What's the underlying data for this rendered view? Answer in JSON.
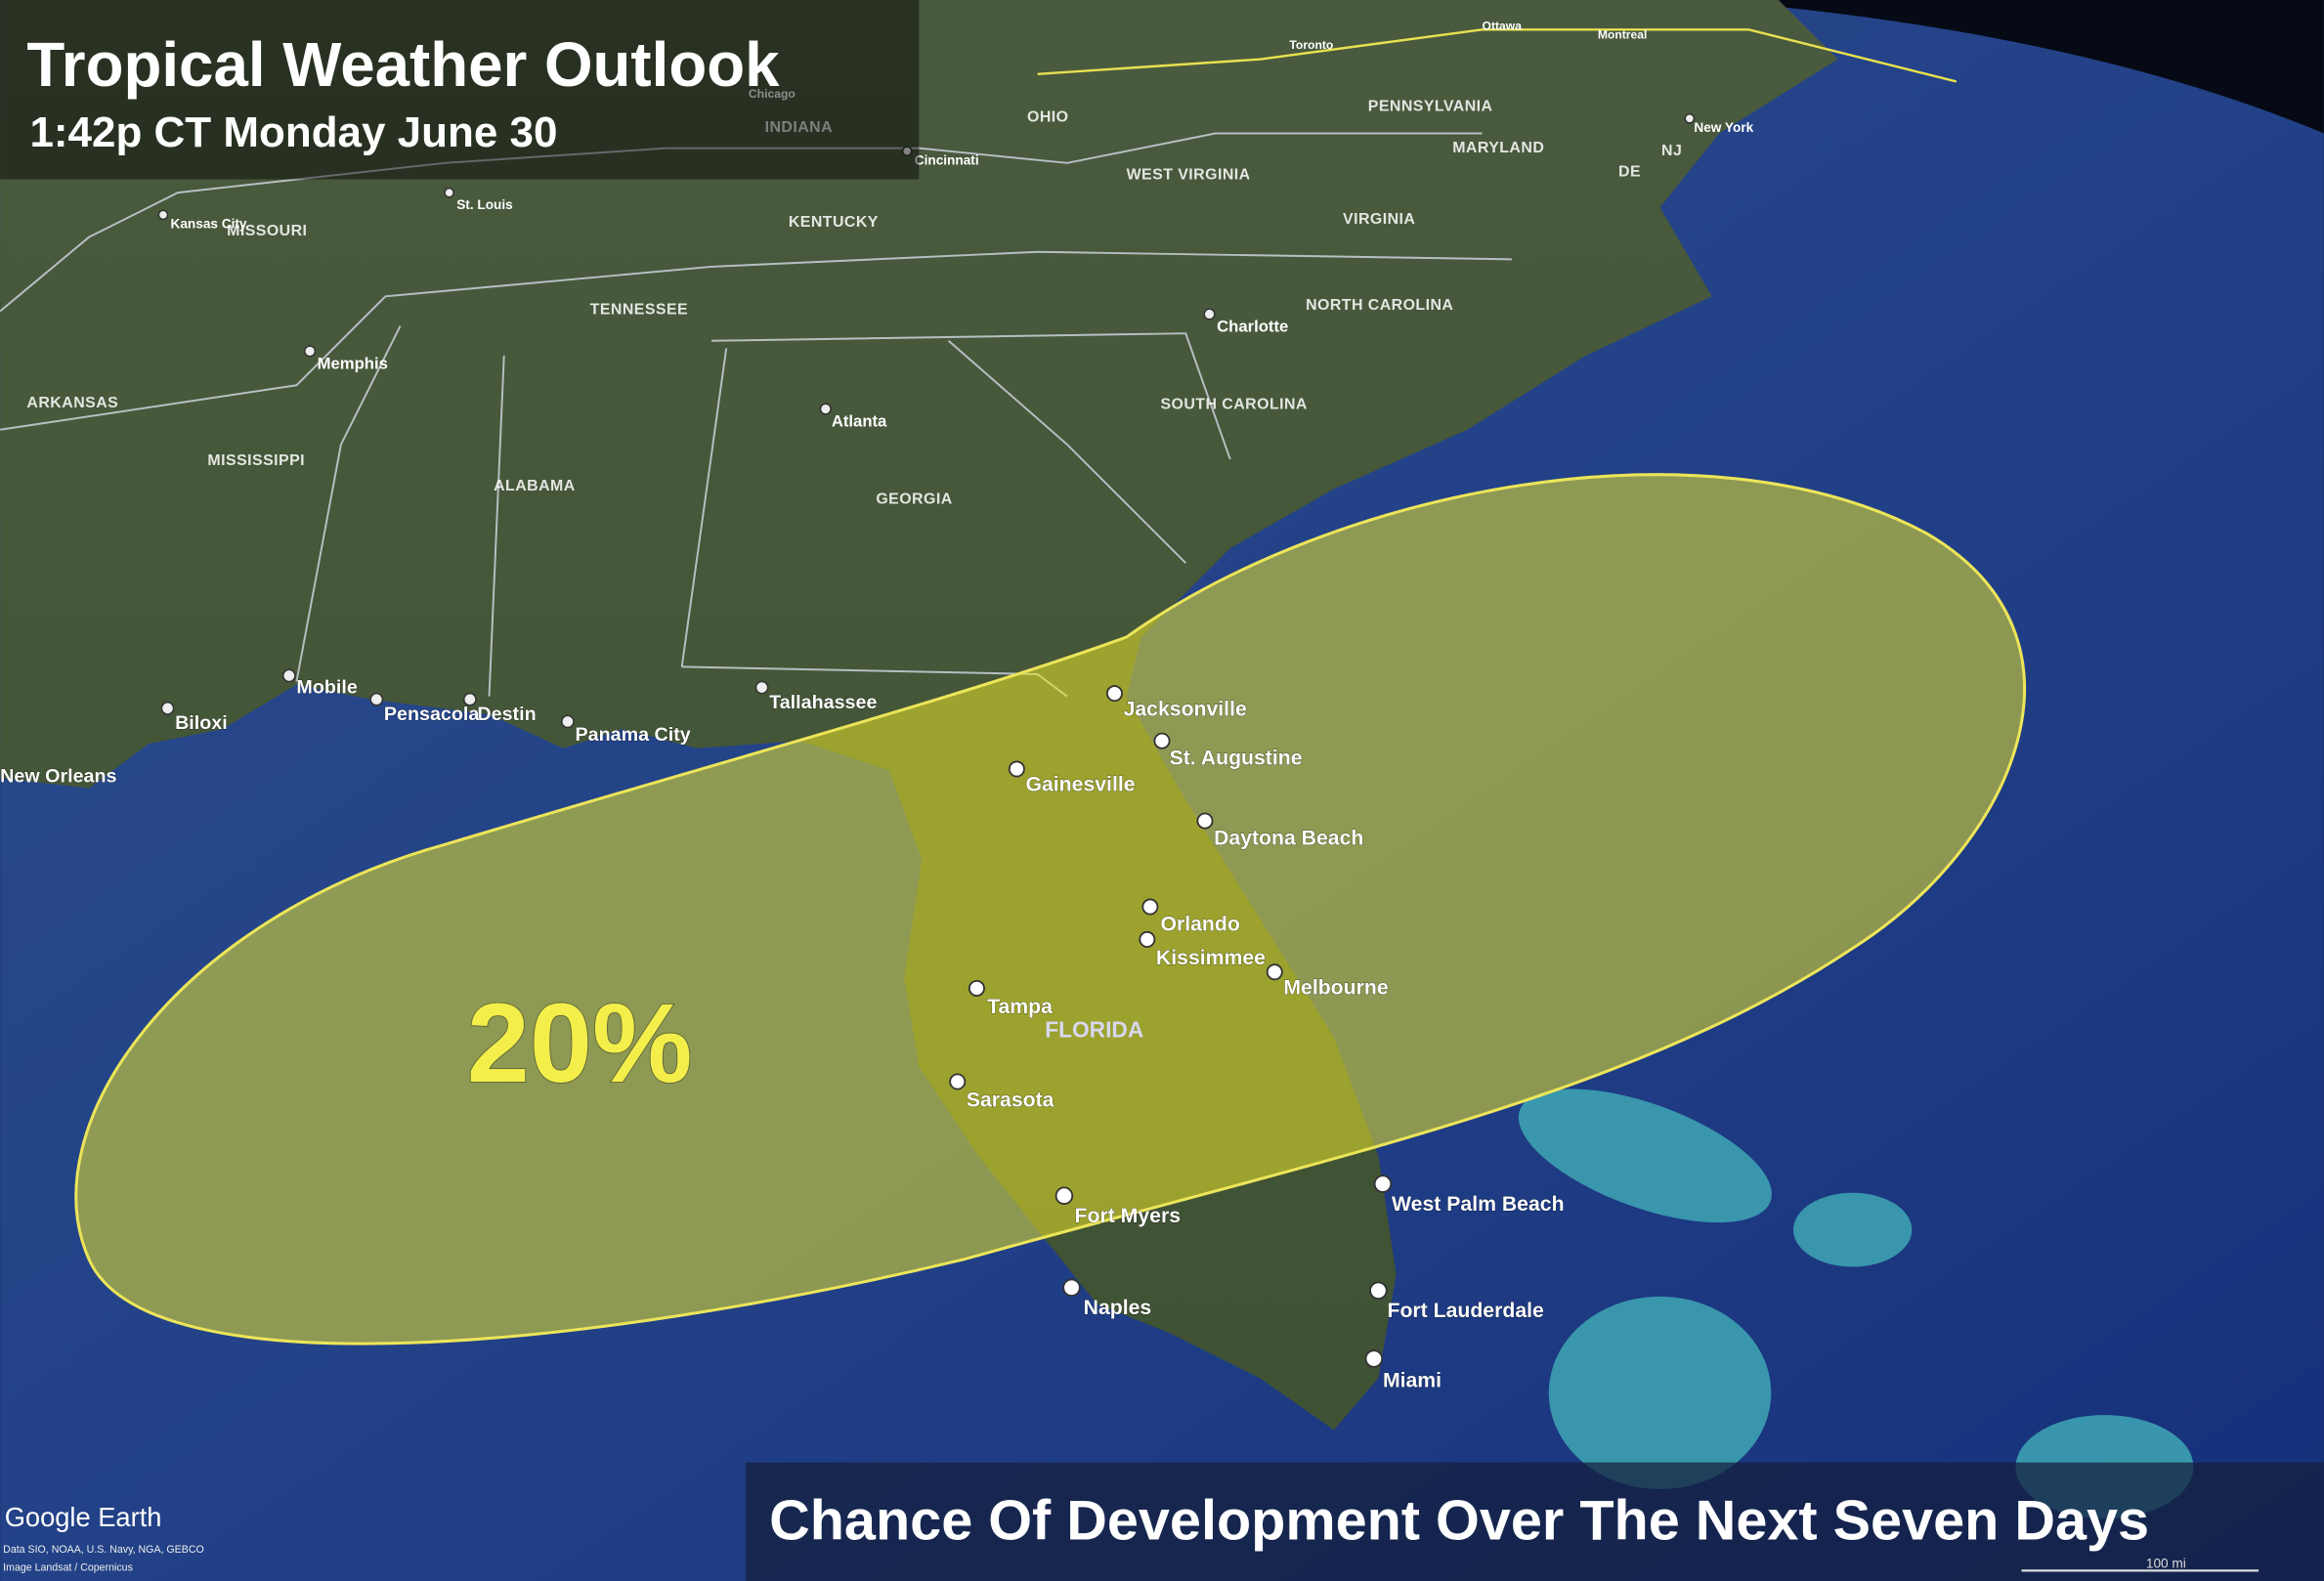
{
  "header": {
    "title": "Tropical Weather Outlook",
    "timestamp": "1:42p CT Monday June 30"
  },
  "outlook": {
    "probability": "20%",
    "caption": "Chance Of Development Over The Next Seven Days"
  },
  "states": [
    "MISSOURI",
    "KENTUCKY",
    "TENNESSEE",
    "ARKANSAS",
    "MISSISSIPPI",
    "ALABAMA",
    "GEORGIA",
    "SOUTH CAROLINA",
    "NORTH CAROLINA",
    "VIRGINIA",
    "WEST VIRGINIA",
    "OHIO",
    "INDIANA",
    "PENNSYLVANIA",
    "MARYLAND",
    "NJ",
    "DE",
    "FLORIDA"
  ],
  "cities": [
    "Jacksonville",
    "St. Augustine",
    "Gainesville",
    "Daytona Beach",
    "Orlando",
    "Kissimmee",
    "Melbourne",
    "Tampa",
    "Sarasota",
    "Fort Myers",
    "Naples",
    "West Palm Beach",
    "Fort Lauderdale",
    "Miami",
    "Tallahassee",
    "Panama City",
    "Destin",
    "Pensacola",
    "Mobile",
    "Biloxi",
    "New Orleans",
    "Atlanta",
    "Memphis",
    "Charlotte",
    "St. Louis",
    "Kansas City",
    "Cincinnati",
    "New York",
    "Chicago",
    "Toronto",
    "Ottawa",
    "Montreal"
  ],
  "attribution": {
    "logo": "Google Earth",
    "data": "Data SIO, NOAA, U.S. Navy, NGA, GEBCO",
    "imagery": "Image Landsat / Copernicus"
  },
  "scale_bar": "100 mi"
}
